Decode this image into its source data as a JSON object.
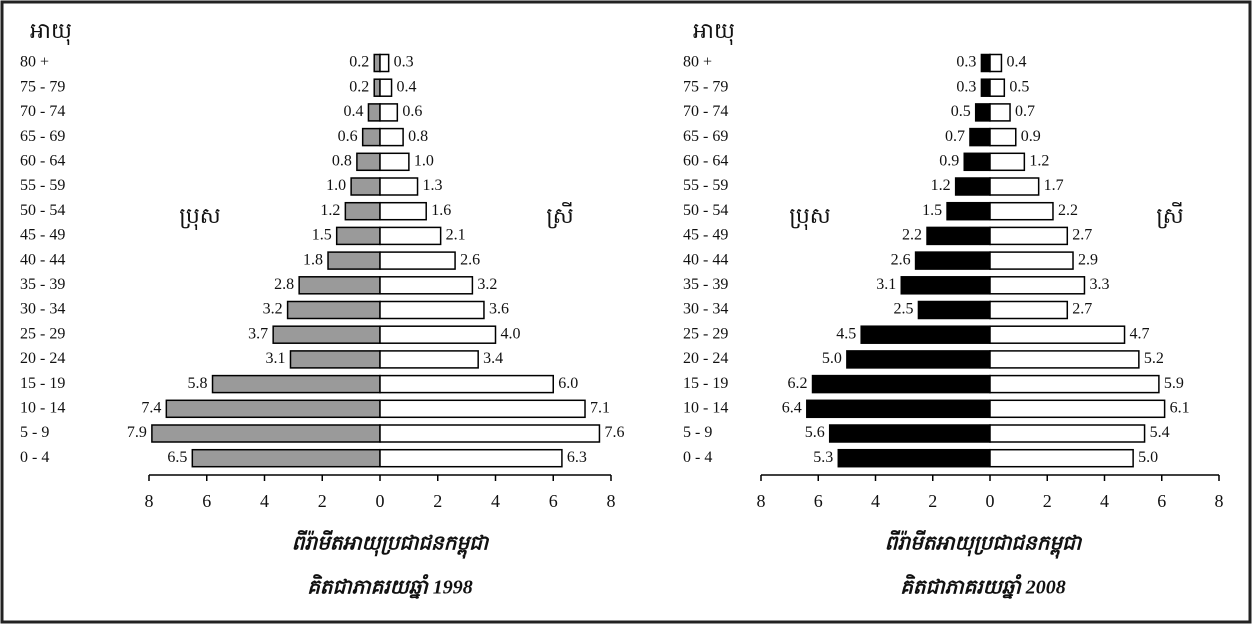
{
  "chart_data": [
    {
      "type": "bar",
      "title": "ពីរ៉ាមីតអាយុប្រជាជនកម្ពុជា",
      "subtitle": "គិតជាភាគរយឆ្នាំ 1998",
      "y_label": "អាយុ",
      "categories": [
        "80 +",
        "75 - 79",
        "70 - 74",
        "65 - 69",
        "60 - 64",
        "55 - 59",
        "50 - 54",
        "45 - 49",
        "40 - 44",
        "35 - 39",
        "30 - 34",
        "25 - 29",
        "20 - 24",
        "15 - 19",
        "10 - 14",
        "5 - 9",
        "0 - 4"
      ],
      "series": [
        {
          "name": "ប្រុស",
          "color": "#9a9a9a",
          "values": [
            0.2,
            0.2,
            0.4,
            0.6,
            0.8,
            1.0,
            1.2,
            1.5,
            1.8,
            2.8,
            3.2,
            3.7,
            3.1,
            5.8,
            7.4,
            7.9,
            6.5
          ],
          "value_labels": [
            "0.2",
            "0.2",
            "0.4",
            "0.6",
            "0.8",
            "1.0",
            "1.2",
            "1.5",
            "1.8",
            "2.8",
            "3.2",
            "3.7",
            "3.1",
            "5.8",
            "7.4",
            "7.9",
            "6.5"
          ]
        },
        {
          "name": "ស្រី",
          "color": "#ffffff",
          "values": [
            0.3,
            0.4,
            0.6,
            0.8,
            1.0,
            1.3,
            1.6,
            2.1,
            2.6,
            3.2,
            3.6,
            4.0,
            3.4,
            6.0,
            7.1,
            7.6,
            6.3
          ],
          "value_labels": [
            "0.3",
            "0.4",
            "0.6",
            "0.8",
            "1.0",
            "1.3",
            "1.6",
            "2.1",
            "2.6",
            "3.2",
            "3.6",
            "4.0",
            "3.4",
            "6.0",
            "7.1",
            "7.6",
            "6.3"
          ]
        }
      ],
      "xlim": [
        -8,
        8
      ],
      "xticks": [
        {
          "value": -8,
          "label": "8"
        },
        {
          "value": -6,
          "label": "6"
        },
        {
          "value": -4,
          "label": "4"
        },
        {
          "value": -2,
          "label": "2"
        },
        0,
        2,
        4,
        6,
        8
      ]
    },
    {
      "type": "bar",
      "title": "ពីរ៉ាមីតអាយុប្រជាជនកម្ពុជា",
      "subtitle": "គិតជាភាគរយឆ្នាំ 2008",
      "y_label": "អាយុ",
      "categories": [
        "80 +",
        "75 - 79",
        "70 - 74",
        "65 - 69",
        "60 - 64",
        "55 - 59",
        "50 - 54",
        "45 - 49",
        "40 - 44",
        "35 - 39",
        "30 - 34",
        "25 - 29",
        "20 - 24",
        "15 - 19",
        "10 - 14",
        "5 - 9",
        "0 - 4"
      ],
      "series": [
        {
          "name": "ប្រុស",
          "color": "#000000",
          "values": [
            0.3,
            0.3,
            0.5,
            0.7,
            0.9,
            1.2,
            1.5,
            2.2,
            2.6,
            3.1,
            2.5,
            4.5,
            5.0,
            6.2,
            6.4,
            5.6,
            5.3
          ],
          "value_labels": [
            "0.3",
            "0.3",
            "0.5",
            "0.7",
            "0.9",
            "1.2",
            "1.5",
            "2.2",
            "2.6",
            "3.1",
            "2.5",
            "4.5",
            "5.0",
            "6.2",
            "6.4",
            "5.6",
            "5.3"
          ]
        },
        {
          "name": "ស្រី",
          "color": "#ffffff",
          "values": [
            0.4,
            0.5,
            0.7,
            0.9,
            1.2,
            1.7,
            2.2,
            2.7,
            2.9,
            3.3,
            2.7,
            4.7,
            5.2,
            5.9,
            6.1,
            5.4,
            5.0
          ],
          "value_labels": [
            "0.4",
            "0.5",
            "0.7",
            "0.9",
            "1.2",
            "1.7",
            "2.2",
            "2.7",
            "2.9",
            "3.3",
            "2.7",
            "4.7",
            "5.2",
            "5.9",
            "6.1",
            "5.4",
            "5.0"
          ]
        }
      ],
      "xlim": [
        -8,
        8
      ],
      "xticks": [
        {
          "value": -8,
          "label": "8"
        },
        {
          "value": -6,
          "label": "6"
        },
        {
          "value": -4,
          "label": "4"
        },
        {
          "value": -2,
          "label": "2"
        },
        0,
        2,
        4,
        6,
        8
      ]
    }
  ]
}
